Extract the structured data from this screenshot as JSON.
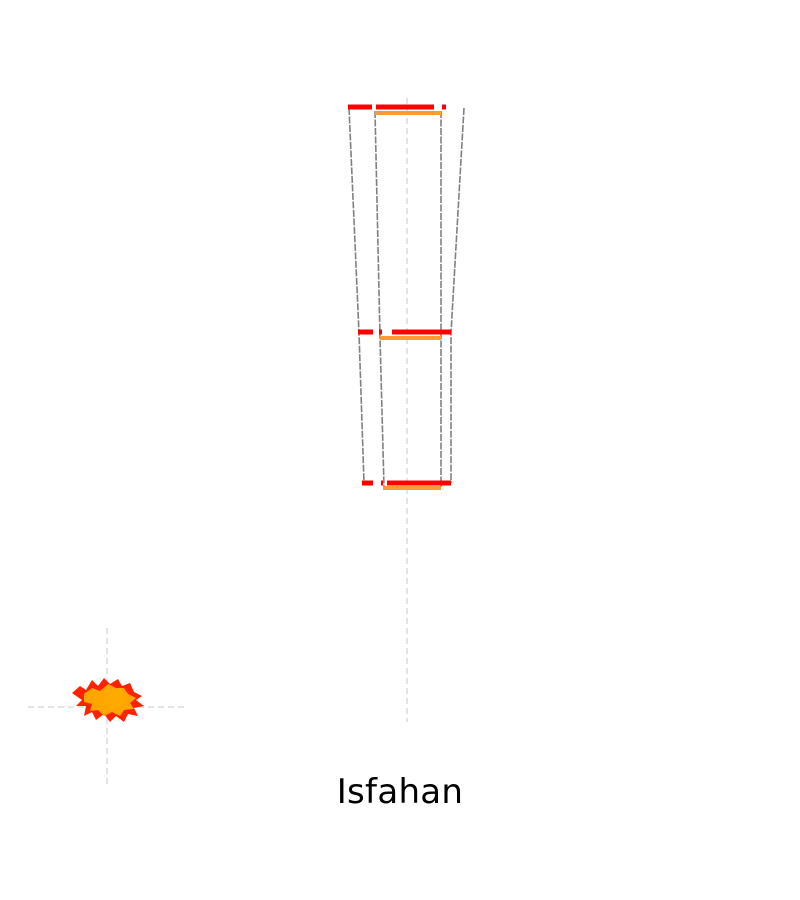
{
  "caption": "Isfahan",
  "colors": {
    "outer_bar": "#ff0000",
    "inner_bar": "#ff9933",
    "outline": "#808080",
    "guide": "#d3d3d3",
    "blob_core": "#ffa500",
    "blob_edge": "#ff2200"
  }
}
